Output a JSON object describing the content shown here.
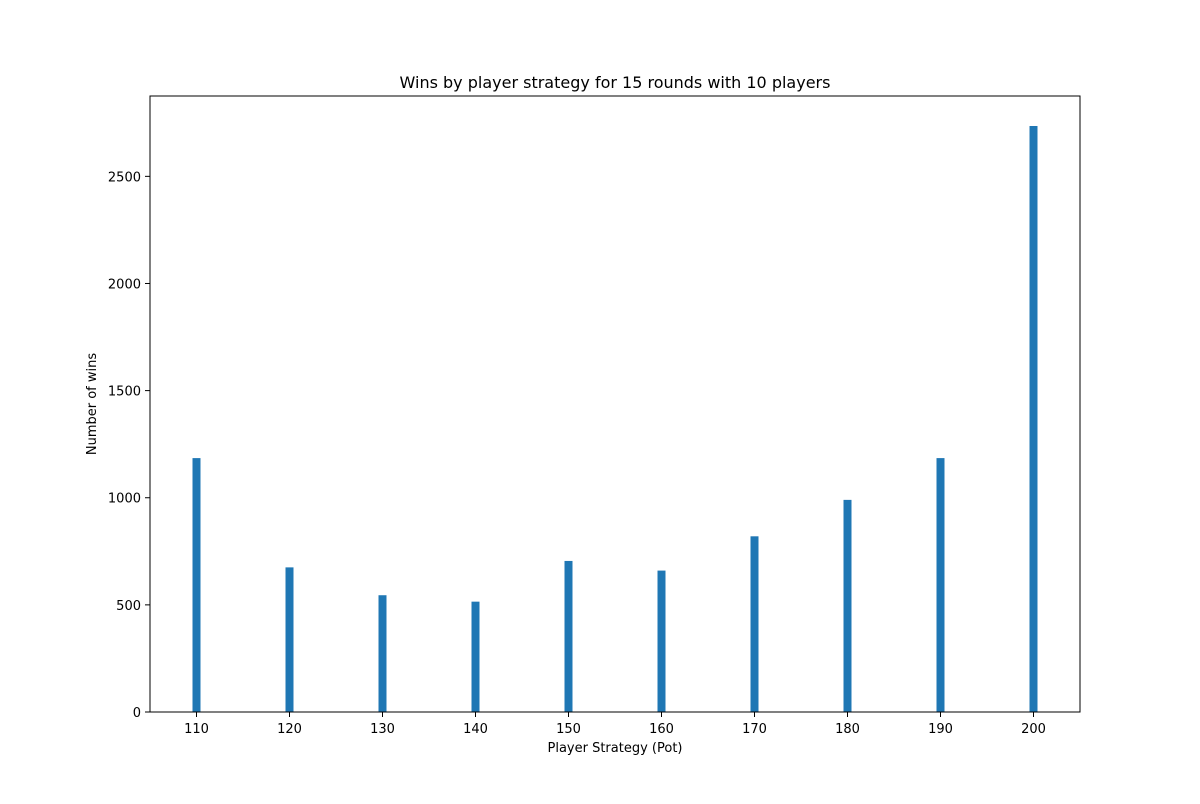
{
  "chart_data": {
    "type": "bar",
    "title": "Wins by player strategy for 15 rounds with 10 players",
    "xlabel": "Player Strategy (Pot)",
    "ylabel": "Number of wins",
    "categories": [
      110,
      120,
      130,
      140,
      150,
      160,
      170,
      180,
      190,
      200
    ],
    "values": [
      1185,
      675,
      545,
      515,
      705,
      660,
      820,
      990,
      1185,
      2735
    ],
    "xlim": [
      105,
      205
    ],
    "ylim": [
      0,
      2875
    ],
    "xticks": [
      "110",
      "120",
      "130",
      "140",
      "150",
      "160",
      "170",
      "180",
      "190",
      "200"
    ],
    "yticks": [
      "0",
      "500",
      "1000",
      "1500",
      "2000",
      "2500"
    ],
    "grid": false,
    "legend": false,
    "bar_color": "#1f77b4"
  }
}
